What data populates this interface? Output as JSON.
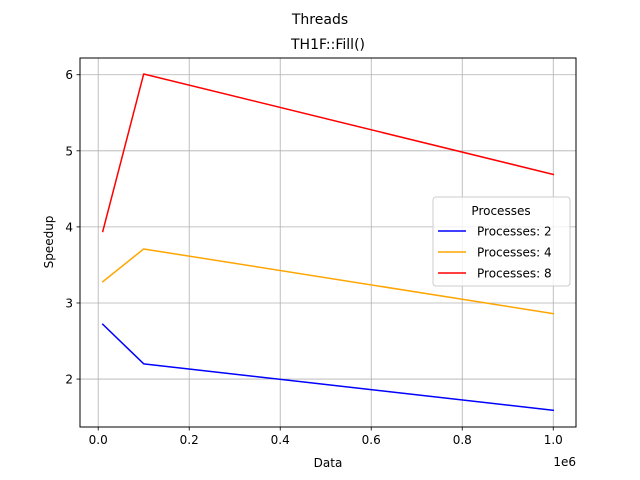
{
  "chart_data": {
    "type": "line",
    "suptitle": "Threads",
    "title": "TH1F::Fill()",
    "xlabel": "Data",
    "ylabel": "Speedup",
    "x_offset_label": "1e6",
    "x": [
      10000,
      100000,
      1000000
    ],
    "xlim": [
      -0.04,
      1.05
    ],
    "ylim": [
      1.37,
      6.22
    ],
    "x_ticks": [
      0.0,
      0.2,
      0.4,
      0.6,
      0.8,
      1.0
    ],
    "x_tick_labels": [
      "0.0",
      "0.2",
      "0.4",
      "0.6",
      "0.8",
      "1.0"
    ],
    "y_ticks": [
      2,
      3,
      4,
      5,
      6
    ],
    "y_tick_labels": [
      "2",
      "3",
      "4",
      "5",
      "6"
    ],
    "grid": true,
    "legend": {
      "title": "Processes",
      "placement": "right"
    },
    "series": [
      {
        "name": "Processes: 2",
        "color": "#0000ff",
        "values": [
          2.72,
          2.2,
          1.59
        ]
      },
      {
        "name": "Processes: 4",
        "color": "#ffa500",
        "values": [
          3.28,
          3.71,
          2.86
        ]
      },
      {
        "name": "Processes: 8",
        "color": "#ff0000",
        "values": [
          3.94,
          6.01,
          4.69
        ]
      }
    ]
  }
}
